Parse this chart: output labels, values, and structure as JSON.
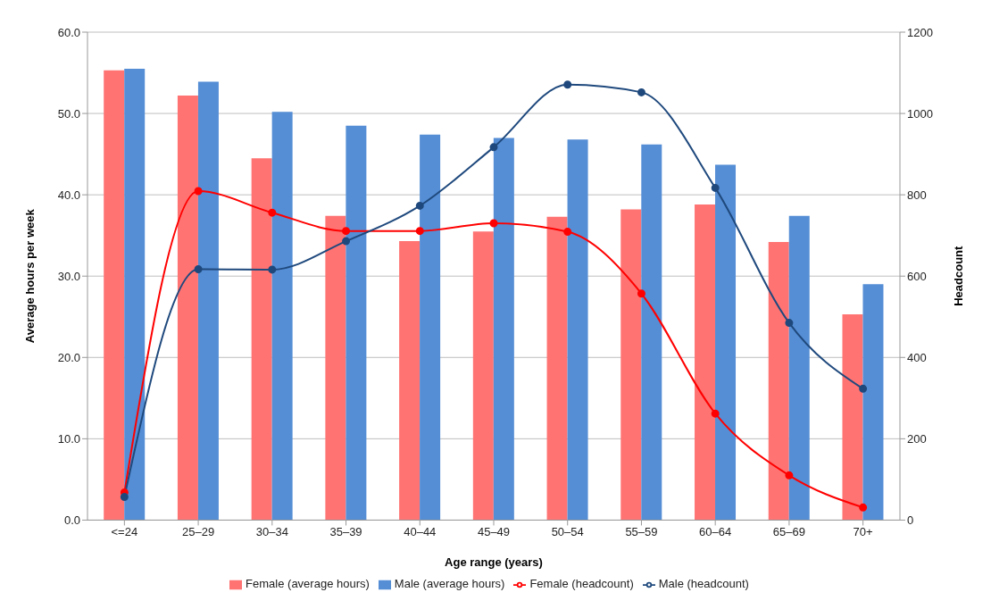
{
  "chart_data": {
    "type": "bar",
    "xlabel": "Age range (years)",
    "ylabel": "Average hours per week",
    "y2label": "Headcount",
    "categories": [
      "<=24",
      "25–29",
      "30–34",
      "35–39",
      "40–44",
      "45–49",
      "50–54",
      "55–59",
      "60–64",
      "65–69",
      "70+"
    ],
    "series": [
      {
        "name": "Female (average hours)",
        "color": "#ff7373",
        "values": [
          55.3,
          52.2,
          44.5,
          37.4,
          34.3,
          35.5,
          37.3,
          38.2,
          38.8,
          34.2,
          25.3
        ]
      },
      {
        "name": "Male (average hours)",
        "color": "#558ed5",
        "values": [
          55.5,
          53.9,
          50.2,
          48.5,
          47.4,
          47.0,
          46.8,
          46.2,
          43.7,
          37.4,
          29.0
        ]
      },
      {
        "name": "Female (headcount)",
        "type": "line",
        "axis": "y2",
        "color": "#ff0000",
        "values": [
          68,
          809,
          756,
          711,
          711,
          730,
          709,
          557,
          262,
          110,
          31
        ]
      },
      {
        "name": "Male (headcount)",
        "type": "line",
        "axis": "y2",
        "color": "#1f497d",
        "values": [
          57,
          617,
          616,
          686,
          773,
          917,
          1071,
          1052,
          817,
          485,
          323
        ]
      }
    ],
    "ylim": [
      0,
      60
    ],
    "yticks": [
      {
        "value": 0,
        "label": "0.0"
      },
      {
        "value": 10,
        "label": "10.0"
      },
      {
        "value": 20,
        "label": "20.0"
      },
      {
        "value": 30,
        "label": "30.0"
      },
      {
        "value": 40,
        "label": "40.0"
      },
      {
        "value": 50,
        "label": "50.0"
      },
      {
        "value": 60,
        "label": "60.0"
      }
    ],
    "y2lim": [
      0,
      1200
    ],
    "y2ticks": [
      0,
      200,
      400,
      600,
      800,
      1000,
      1200
    ],
    "grid": "y",
    "legend": "bottom",
    "marker": "circle",
    "line_style": "solid"
  }
}
